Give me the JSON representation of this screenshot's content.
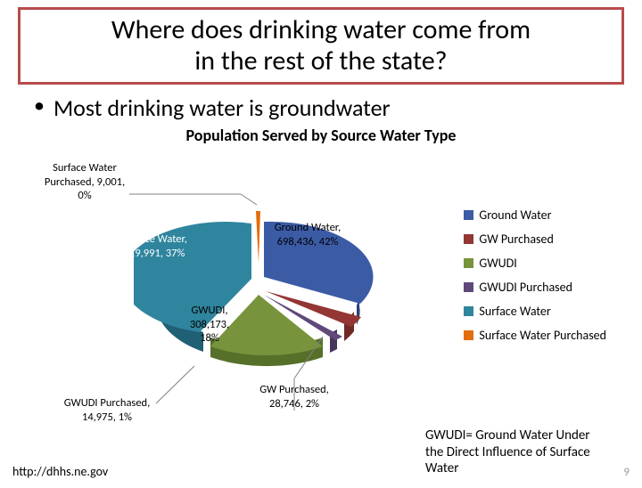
{
  "title_box": {
    "border_color": "#b84b4b",
    "line1": "Where does drinking water come from",
    "line2": "in the rest of the state?"
  },
  "bullet": {
    "text": "Most drinking water is groundwater"
  },
  "chart": {
    "title": "Population Served by Source Water Type",
    "type": "pie-3d-exploded",
    "background": "#ffffff",
    "slices": [
      {
        "label": "Ground Water",
        "value": 698436,
        "pct": 42,
        "color": "#3b5ba5",
        "explode": 6
      },
      {
        "label": "GW Purchased",
        "value": 28746,
        "pct": 2,
        "color": "#943634",
        "explode": 10
      },
      {
        "label": "GWUDI Purchased",
        "value": 14975,
        "pct": 1,
        "color": "#5f497a",
        "explode": 10
      },
      {
        "label": "GWUDI",
        "value": 308173,
        "pct": 18,
        "color": "#77933c",
        "explode": 10
      },
      {
        "label": "Surface Water",
        "value": 619991,
        "pct": 37,
        "color": "#2f859e",
        "explode": 6
      },
      {
        "label": "Surface Water Purchased",
        "value": 9001,
        "pct": 0,
        "color": "#e46c0a",
        "explode": 12
      }
    ],
    "legend": {
      "items": [
        {
          "label": "Ground Water",
          "color": "#3b5ba5"
        },
        {
          "label": "GW Purchased",
          "color": "#943634"
        },
        {
          "label": "GWUDI",
          "color": "#77933c"
        },
        {
          "label": "GWUDI Purchased",
          "color": "#5f497a"
        },
        {
          "label": "Surface Water",
          "color": "#2f859e"
        },
        {
          "label": "Surface Water Purchased",
          "color": "#e46c0a"
        }
      ]
    },
    "callouts": {
      "sw_purchased": {
        "l1": "Surface Water",
        "l2": "Purchased, 9,001,",
        "l3": "0%"
      },
      "surface_water": {
        "l1": "Surface Water,",
        "l2": "619,991, 37%"
      },
      "ground_water": {
        "l1": "Ground Water,",
        "l2": "698,436, 42%"
      },
      "gwudi": {
        "l1": "GWUDI,",
        "l2": "308,173,",
        "l3": "18%"
      },
      "gw_purchased": {
        "l1": "GW Purchased,",
        "l2": "28,746, 2%"
      },
      "gwudi_purchased": {
        "l1": "GWUDI Purchased,",
        "l2": "14,975, 1%"
      }
    }
  },
  "footnote": {
    "l1": "GWUDI= Ground Water Under",
    "l2": "the Direct Influence of Surface",
    "l3": "Water"
  },
  "source": "http://dhhs.ne.gov",
  "page_number": "9"
}
